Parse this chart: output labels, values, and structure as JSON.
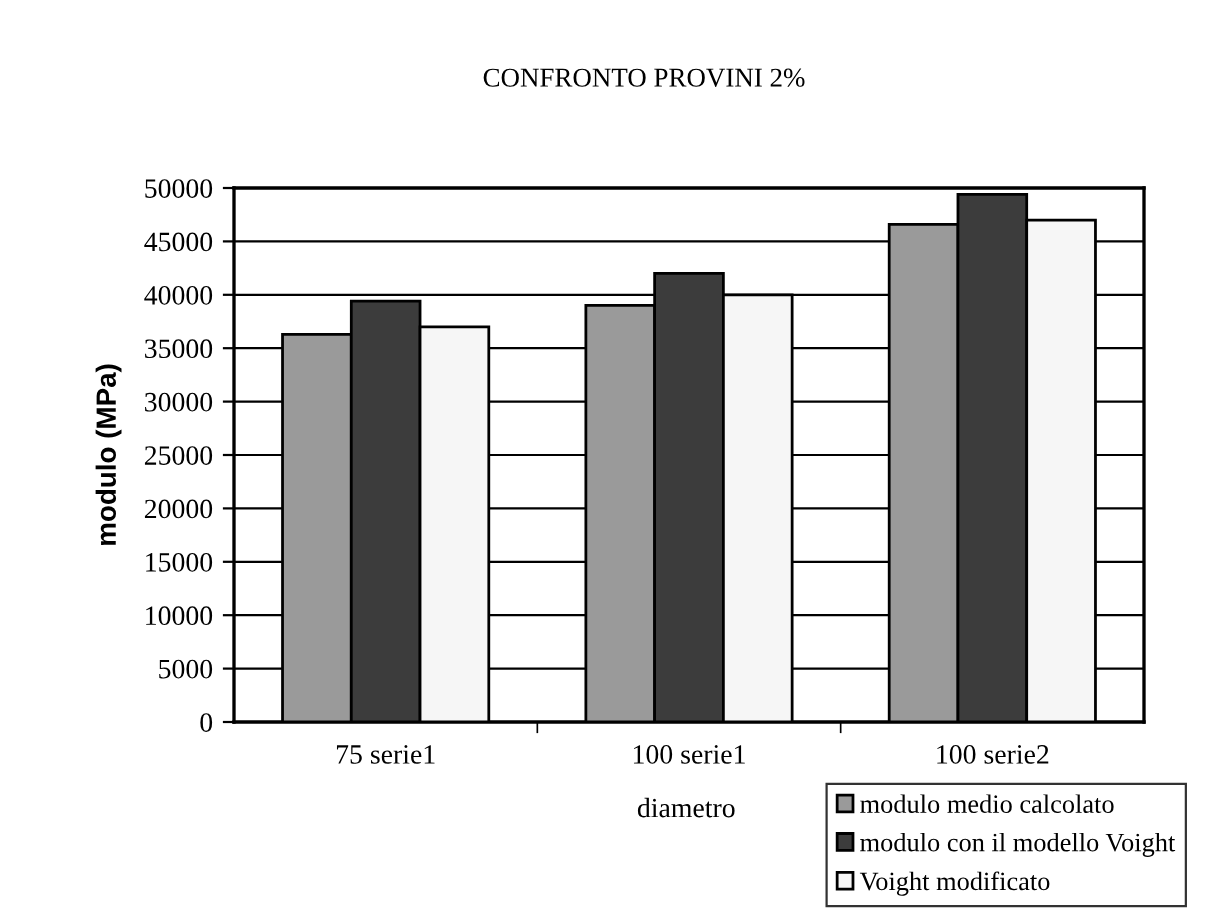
{
  "chart_data": {
    "type": "bar",
    "title": "CONFRONTO PROVINI 2%",
    "xlabel": "diametro",
    "ylabel": "modulo (MPa)",
    "categories": [
      "75 serie1",
      "100 serie1",
      "100 serie2"
    ],
    "series": [
      {
        "name": "modulo medio calcolato",
        "color": "#9a9a9a",
        "values": [
          36300,
          39000,
          46600
        ]
      },
      {
        "name": "modulo con il modello Voight",
        "color": "#3c3c3c",
        "values": [
          39400,
          42000,
          49400
        ]
      },
      {
        "name": "Voight modificato",
        "color": "#f6f6f6",
        "values": [
          37000,
          40000,
          47000
        ]
      }
    ],
    "ylim": [
      0,
      50000
    ],
    "yticks": [
      0,
      5000,
      10000,
      15000,
      20000,
      25000,
      30000,
      35000,
      40000,
      45000,
      50000
    ],
    "grid": "y",
    "legend": "bottom right"
  }
}
